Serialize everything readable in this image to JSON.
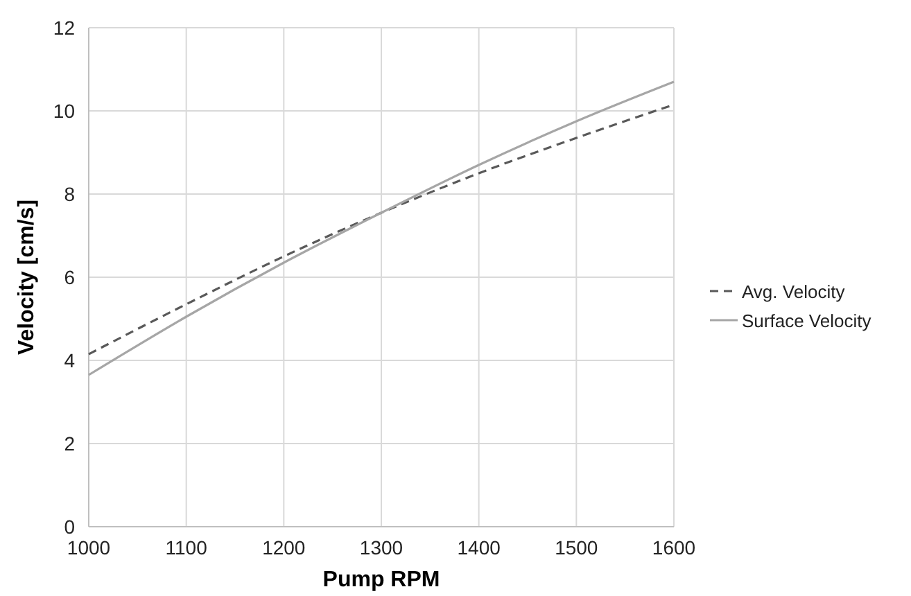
{
  "chart_data": {
    "type": "line",
    "xlabel": "Pump RPM",
    "ylabel": "Velocity [cm/s]",
    "x": [
      1000,
      1100,
      1200,
      1300,
      1400,
      1500,
      1600
    ],
    "series": [
      {
        "name": "Avg. Velocity",
        "color": "#595959",
        "line_style": "dashed",
        "values": [
          4.15,
          5.35,
          6.5,
          7.55,
          8.5,
          9.35,
          10.15
        ]
      },
      {
        "name": "Surface Velocity",
        "color": "#a6a6a6",
        "line_style": "solid",
        "values": [
          3.65,
          5.05,
          6.35,
          7.55,
          8.7,
          9.75,
          10.7
        ]
      }
    ],
    "xlim": [
      1000,
      1600
    ],
    "xticks": [
      1000,
      1100,
      1200,
      1300,
      1400,
      1500,
      1600
    ],
    "ylim": [
      0,
      12
    ],
    "yticks": [
      0,
      2,
      4,
      6,
      8,
      10,
      12
    ],
    "grid": true,
    "legend": "right",
    "marker": "none"
  }
}
